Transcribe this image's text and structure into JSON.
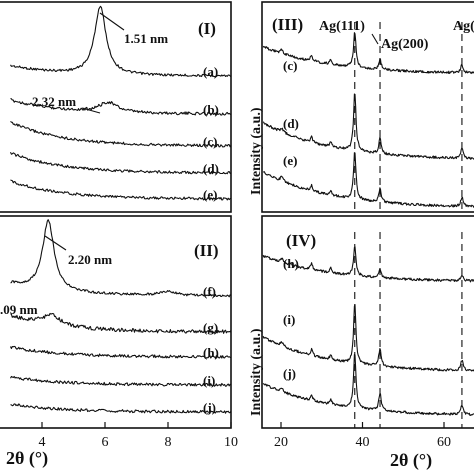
{
  "figure": {
    "panels": [
      "(I)",
      "(II)",
      "(III)",
      "(IV)"
    ],
    "xlabel_left": "2θ (°)",
    "xlabel_right": "2θ (°)",
    "ylabel_right_top": "Intensity (a.u.)",
    "ylabel_right_bottom": "Intensity (a.u.)"
  },
  "chart_data": [
    {
      "type": "line",
      "panel": "(I)",
      "xlim": [
        3,
        10
      ],
      "x_ticks": [],
      "series": [
        {
          "name": "(a)",
          "peaks": [
            {
              "x": 5.85,
              "label": "1.51 nm"
            }
          ]
        },
        {
          "name": "(b)",
          "peaks": [
            {
              "x": 6.1,
              "label": "2.32 nm"
            }
          ]
        },
        {
          "name": "(c)",
          "peaks": []
        },
        {
          "name": "(d)",
          "peaks": []
        },
        {
          "name": "(e)",
          "peaks": []
        }
      ]
    },
    {
      "type": "line",
      "panel": "(II)",
      "xlim": [
        3,
        10
      ],
      "x_ticks": [
        "4",
        "6",
        "8",
        "10"
      ],
      "series": [
        {
          "name": "(f)",
          "peaks": [
            {
              "x": 4.2,
              "label": "2.20 nm"
            }
          ]
        },
        {
          "name": "(g)",
          "peaks": [
            {
              "x": 4.3,
              "label": ".09 nm"
            }
          ]
        },
        {
          "name": "(h)",
          "peaks": []
        },
        {
          "name": "(i)",
          "peaks": []
        },
        {
          "name": "(j)",
          "peaks": []
        }
      ]
    },
    {
      "type": "line",
      "panel": "(III)",
      "xlim": [
        10,
        70
      ],
      "x_ticks": [],
      "annotations": [
        "Ag(111)",
        "Ag(200)",
        "Ag("
      ],
      "reference_lines_x": [
        38.1,
        44.3,
        64.4
      ],
      "series": [
        {
          "name": "(c)"
        },
        {
          "name": "(d)"
        },
        {
          "name": "(e)"
        }
      ]
    },
    {
      "type": "line",
      "panel": "(IV)",
      "xlim": [
        10,
        70
      ],
      "x_ticks": [
        "20",
        "40",
        "60"
      ],
      "reference_lines_x": [
        38.1,
        44.3,
        64.4
      ],
      "series": [
        {
          "name": "(h)"
        },
        {
          "name": "(i)"
        },
        {
          "name": "(j)"
        }
      ]
    }
  ]
}
